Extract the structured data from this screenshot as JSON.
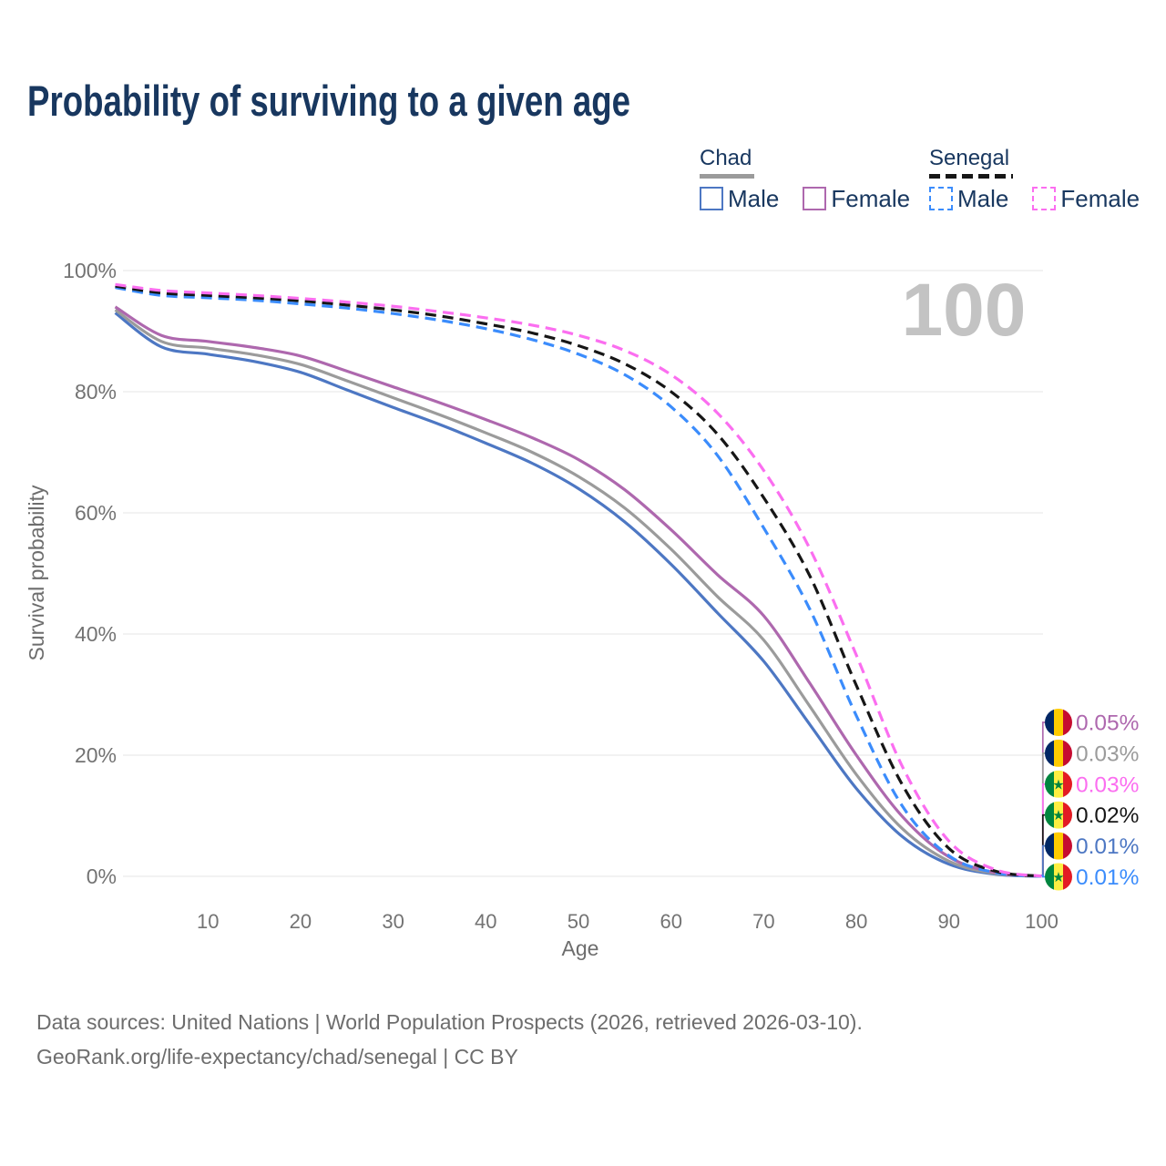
{
  "title": "Probability of surviving to a given age",
  "legend": {
    "chad": {
      "title": "Chad",
      "male": "Male",
      "female": "Female",
      "line_style": "solid",
      "line_color": "#9b9b9b",
      "male_color": "#4d77c3",
      "female_color": "#ae68ae"
    },
    "senegal": {
      "title": "Senegal",
      "male": "Male",
      "female": "Female",
      "line_style": "dashed",
      "line_color": "#161616",
      "male_color": "#3b8cfc",
      "female_color": "#fb6ef0"
    }
  },
  "watermark": "100",
  "footer": {
    "line1": "Data sources: United Nations | World Population Prospects (2026, retrieved 2026-03-10).",
    "line2": "GeoRank.org/life-expectancy/chad/senegal | CC BY"
  },
  "flags": {
    "chad": {
      "stripes": [
        "#002664",
        "#fecb00",
        "#c60c30"
      ]
    },
    "senegal": {
      "stripes": [
        "#00853f",
        "#fdef42",
        "#e31b23"
      ],
      "star": "#00853f",
      "star_glyph": "★"
    }
  },
  "colors": {
    "grid": "#e9e9e9",
    "tick_text": "#737373",
    "axis_title_text": "#6d6d6d",
    "watermark_text": "#c3c3c3",
    "heading_text": "#18375f",
    "footer_text": "#6d6d6d"
  },
  "chart_data": {
    "type": "line",
    "title": "Probability of surviving to a given age",
    "xlabel": "Age",
    "ylabel": "Survival probability",
    "xlim": [
      0,
      100
    ],
    "ylim": [
      0,
      100
    ],
    "grid": "horizontal",
    "legend_position": "top-right",
    "x_ticks": [
      10,
      20,
      30,
      40,
      50,
      60,
      70,
      80,
      90,
      100
    ],
    "y_ticks": [
      {
        "value": 0,
        "label": "0%"
      },
      {
        "value": 20,
        "label": "20%"
      },
      {
        "value": 40,
        "label": "40%"
      },
      {
        "value": 60,
        "label": "60%"
      },
      {
        "value": 80,
        "label": "80%"
      },
      {
        "value": 100,
        "label": "100%"
      }
    ],
    "x": [
      0,
      5,
      10,
      15,
      20,
      25,
      30,
      35,
      40,
      45,
      50,
      55,
      60,
      65,
      70,
      75,
      80,
      85,
      90,
      95,
      100
    ],
    "series": [
      {
        "name": "Chad Male",
        "country": "Chad",
        "color": "#4d77c3",
        "dash": "solid",
        "values": [
          93.0,
          87.4,
          86.2,
          85.0,
          83.2,
          80.3,
          77.4,
          74.6,
          71.5,
          68.2,
          64.0,
          58.5,
          51.5,
          43.5,
          35.5,
          25.0,
          14.5,
          6.5,
          2.0,
          0.35,
          0.01
        ]
      },
      {
        "name": "Chad",
        "country": "Chad",
        "color": "#9b9b9b",
        "dash": "solid",
        "values": [
          93.5,
          88.3,
          87.2,
          86.1,
          84.5,
          81.8,
          79.0,
          76.2,
          73.2,
          70.0,
          66.0,
          60.8,
          54.0,
          46.2,
          39.0,
          28.0,
          16.8,
          7.8,
          2.5,
          0.45,
          0.03
        ]
      },
      {
        "name": "Chad Female",
        "country": "Chad",
        "color": "#ae68ae",
        "dash": "solid",
        "values": [
          94.0,
          89.3,
          88.3,
          87.3,
          85.9,
          83.4,
          80.8,
          78.2,
          75.4,
          72.4,
          68.8,
          63.8,
          57.2,
          49.8,
          43.0,
          31.8,
          20.0,
          9.8,
          3.2,
          0.6,
          0.05
        ]
      },
      {
        "name": "Senegal Male",
        "country": "Senegal",
        "color": "#3b8cfc",
        "dash": "dashed",
        "values": [
          97.2,
          95.9,
          95.5,
          95.1,
          94.5,
          93.8,
          92.9,
          91.8,
          90.4,
          88.6,
          86.2,
          82.8,
          77.5,
          69.5,
          57.5,
          44.0,
          26.5,
          11.5,
          3.4,
          0.6,
          0.01
        ]
      },
      {
        "name": "Senegal",
        "country": "Senegal",
        "color": "#161616",
        "dash": "dashed",
        "values": [
          97.45,
          96.3,
          95.9,
          95.5,
          95.0,
          94.3,
          93.5,
          92.5,
          91.2,
          89.7,
          87.6,
          84.6,
          80.0,
          73.0,
          62.5,
          49.5,
          31.5,
          15.0,
          4.6,
          0.85,
          0.02
        ]
      },
      {
        "name": "Senegal Female",
        "country": "Senegal",
        "color": "#fb6ef0",
        "dash": "dashed",
        "values": [
          97.7,
          96.7,
          96.3,
          95.9,
          95.4,
          94.8,
          94.1,
          93.2,
          92.2,
          91.0,
          89.3,
          86.8,
          82.8,
          76.5,
          67.0,
          54.0,
          36.5,
          18.0,
          5.8,
          1.1,
          0.03
        ]
      }
    ],
    "end_labels": [
      {
        "value": "0.05%",
        "series": "Chad Female",
        "flag": "chad",
        "color": "#ae68ae"
      },
      {
        "value": "0.03%",
        "series": "Chad",
        "flag": "chad",
        "color": "#9b9b9b"
      },
      {
        "value": "0.03%",
        "series": "Senegal Female",
        "flag": "senegal",
        "color": "#fb6ef0"
      },
      {
        "value": "0.02%",
        "series": "Senegal",
        "flag": "senegal",
        "color": "#161616"
      },
      {
        "value": "0.01%",
        "series": "Chad Male",
        "flag": "chad",
        "color": "#4d77c3"
      },
      {
        "value": "0.01%",
        "series": "Senegal Male",
        "flag": "senegal",
        "color": "#3b8cfc"
      }
    ],
    "annotations": [
      {
        "text": "100",
        "role": "hovered-age-watermark"
      }
    ]
  }
}
